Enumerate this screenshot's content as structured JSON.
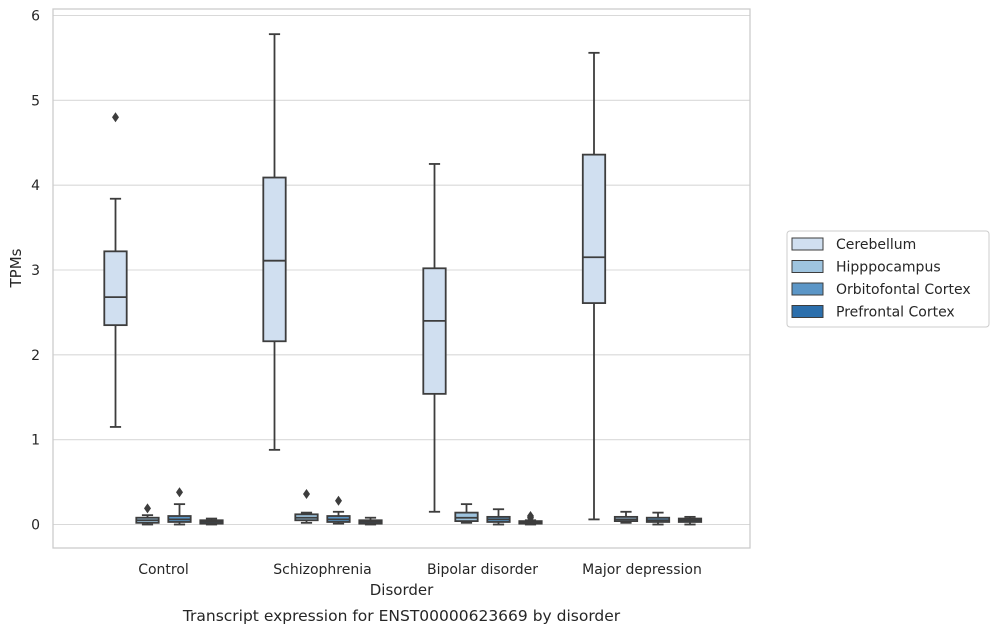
{
  "chart_data": {
    "type": "box",
    "xlabel": "Disorder",
    "ylabel": "TPMs",
    "caption": "Transcript expression for ENST00000623669 by disorder",
    "ylim": [
      -0.28,
      6.07
    ],
    "yticks": [
      0,
      1,
      2,
      3,
      4,
      5,
      6
    ],
    "grid": "horizontal",
    "legend_position": "right",
    "categories": [
      "Control",
      "Schizophrenia",
      "Bipolar disorder",
      "Major depression"
    ],
    "series": [
      {
        "name": "Cerebellum",
        "color": "#d0dff0",
        "boxes": [
          {
            "whislo": 1.15,
            "q1": 2.35,
            "med": 2.68,
            "q3": 3.22,
            "whishi": 3.84,
            "fliers": [
              4.8
            ]
          },
          {
            "whislo": 0.88,
            "q1": 2.16,
            "med": 3.11,
            "q3": 4.09,
            "whishi": 5.78,
            "fliers": []
          },
          {
            "whislo": 0.15,
            "q1": 1.54,
            "med": 2.4,
            "q3": 3.02,
            "whishi": 4.25,
            "fliers": []
          },
          {
            "whislo": 0.06,
            "q1": 2.61,
            "med": 3.15,
            "q3": 4.36,
            "whishi": 5.56,
            "fliers": []
          }
        ]
      },
      {
        "name": "Hipppocampus",
        "color": "#9ec4df",
        "boxes": [
          {
            "whislo": 0.0,
            "q1": 0.02,
            "med": 0.05,
            "q3": 0.08,
            "whishi": 0.11,
            "fliers": [
              0.19
            ]
          },
          {
            "whislo": 0.02,
            "q1": 0.05,
            "med": 0.08,
            "q3": 0.12,
            "whishi": 0.14,
            "fliers": [
              0.36
            ]
          },
          {
            "whislo": 0.02,
            "q1": 0.04,
            "med": 0.08,
            "q3": 0.14,
            "whishi": 0.24,
            "fliers": []
          },
          {
            "whislo": 0.02,
            "q1": 0.04,
            "med": 0.06,
            "q3": 0.09,
            "whishi": 0.15,
            "fliers": []
          }
        ]
      },
      {
        "name": "Orbitofontal Cortex",
        "color": "#5b96c7",
        "boxes": [
          {
            "whislo": 0.0,
            "q1": 0.03,
            "med": 0.06,
            "q3": 0.1,
            "whishi": 0.24,
            "fliers": [
              0.38
            ]
          },
          {
            "whislo": 0.01,
            "q1": 0.03,
            "med": 0.06,
            "q3": 0.1,
            "whishi": 0.15,
            "fliers": [
              0.28
            ]
          },
          {
            "whislo": 0.0,
            "q1": 0.03,
            "med": 0.06,
            "q3": 0.09,
            "whishi": 0.18,
            "fliers": []
          },
          {
            "whislo": 0.0,
            "q1": 0.03,
            "med": 0.05,
            "q3": 0.08,
            "whishi": 0.14,
            "fliers": []
          }
        ]
      },
      {
        "name": "Prefrontal Cortex",
        "color": "#2c6fac",
        "boxes": [
          {
            "whislo": 0.0,
            "q1": 0.01,
            "med": 0.03,
            "q3": 0.05,
            "whishi": 0.07,
            "fliers": []
          },
          {
            "whislo": 0.0,
            "q1": 0.01,
            "med": 0.03,
            "q3": 0.05,
            "whishi": 0.08,
            "fliers": []
          },
          {
            "whislo": 0.0,
            "q1": 0.01,
            "med": 0.02,
            "q3": 0.04,
            "whishi": 0.05,
            "fliers": [
              0.1,
              0.08
            ]
          },
          {
            "whislo": 0.0,
            "q1": 0.03,
            "med": 0.05,
            "q3": 0.07,
            "whishi": 0.09,
            "fliers": []
          }
        ]
      }
    ]
  }
}
